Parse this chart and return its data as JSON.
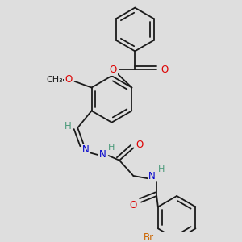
{
  "background_color": "#dedede",
  "bond_color": "#1a1a1a",
  "atom_colors": {
    "O": "#dd0000",
    "N": "#0000cc",
    "Br": "#cc6600",
    "C": "#1a1a1a",
    "H": "#4a9a7a"
  },
  "line_width": 1.3,
  "font_size": 8.5,
  "fig_width": 3.0,
  "fig_height": 3.0,
  "dpi": 100
}
